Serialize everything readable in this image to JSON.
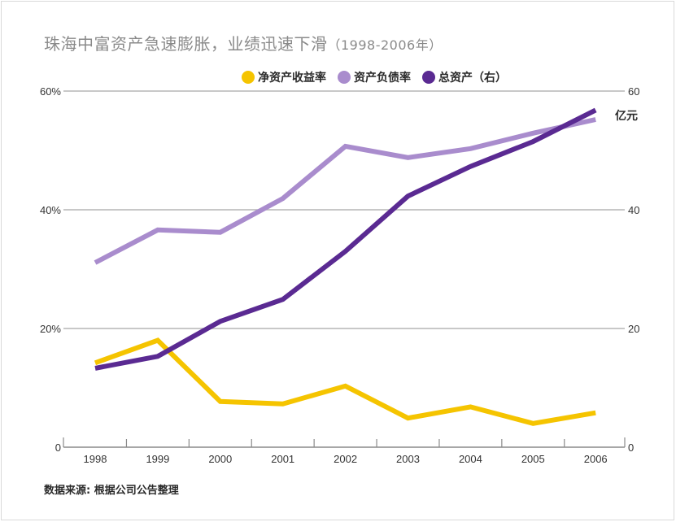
{
  "chart_data": {
    "type": "line",
    "title": "珠海中富资产急速膨胀，业绩迅速下滑",
    "subtitle": "（1998-2006年）",
    "categories": [
      "1998",
      "1999",
      "2000",
      "2001",
      "2002",
      "2003",
      "2004",
      "2005",
      "2006"
    ],
    "series": [
      {
        "name": "净资产收益率",
        "axis": "left",
        "color": "#f5c400",
        "values": [
          14.2,
          18.0,
          7.7,
          7.3,
          10.3,
          4.9,
          6.8,
          4.0,
          5.8
        ]
      },
      {
        "name": "资产负债率",
        "axis": "left",
        "color": "#a98ccd",
        "values": [
          31.1,
          36.6,
          36.2,
          41.9,
          50.7,
          48.8,
          50.3,
          52.9,
          55.2
        ]
      },
      {
        "name": "总资产（右）",
        "axis": "right",
        "color": "#5a2a92",
        "values": [
          13.3,
          15.3,
          21.2,
          24.9,
          33.0,
          42.3,
          47.3,
          51.5,
          56.8
        ]
      }
    ],
    "y_left": {
      "ylim": [
        0,
        60
      ],
      "ticks": [
        0,
        20,
        40,
        60
      ],
      "tick_labels": [
        "0",
        "20%",
        "40%",
        "60%"
      ]
    },
    "y_right": {
      "ylim": [
        0,
        60
      ],
      "ticks": [
        0,
        20,
        40,
        60
      ],
      "tick_labels": [
        "0",
        "20",
        "40",
        "60"
      ],
      "unit": "亿元"
    },
    "grid": true,
    "legend_position": "top-right",
    "source": "数据来源: 根据公司公告整理"
  },
  "text": {
    "title": "珠海中富资产急速膨胀，业绩迅速下滑",
    "subtitle": "（1998-2006年）",
    "unit": "亿元",
    "source": "数据来源: 根据公司公告整理"
  }
}
